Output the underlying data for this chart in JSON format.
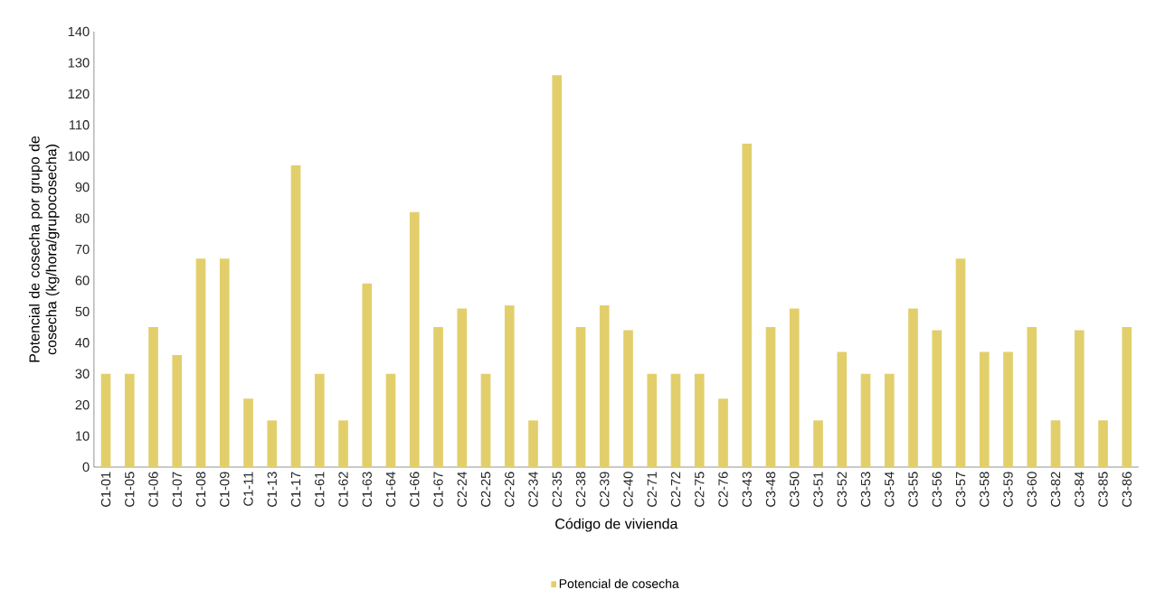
{
  "chart_data": {
    "type": "bar",
    "xlabel": "Código de vivienda",
    "ylabel": "Potencial de cosecha por grupo de cosecha (kg/hora/grupocosecha)",
    "categories": [
      "C1-01",
      "C1-05",
      "C1-06",
      "C1-07",
      "C1-08",
      "C1-09",
      "C1-11",
      "C1-13",
      "C1-17",
      "C1-61",
      "C1-62",
      "C1-63",
      "C1-64",
      "C1-66",
      "C1-67",
      "C2-24",
      "C2-25",
      "C2-26",
      "C2-34",
      "C2-35",
      "C2-38",
      "C2-39",
      "C2-40",
      "C2-71",
      "C2-72",
      "C2-75",
      "C2-76",
      "C3-43",
      "C3-48",
      "C3-50",
      "C3-51",
      "C3-52",
      "C3-53",
      "C3-54",
      "C3-55",
      "C3-56",
      "C3-57",
      "C3-58",
      "C3-59",
      "C3-60",
      "C3-82",
      "C3-84",
      "C3-85",
      "C3-86"
    ],
    "series": [
      {
        "name": "Potencial de cosecha",
        "color": "#e2cf6b",
        "values": [
          30,
          30,
          45,
          36,
          67,
          67,
          22,
          15,
          97,
          30,
          15,
          59,
          30,
          82,
          45,
          51,
          30,
          52,
          15,
          126,
          45,
          52,
          44,
          30,
          30,
          30,
          22,
          104,
          45,
          51,
          15,
          37,
          30,
          30,
          51,
          44,
          67,
          37,
          37,
          45,
          15,
          44,
          15,
          45
        ]
      }
    ],
    "ylim": [
      0,
      140
    ],
    "yticks": [
      0,
      10,
      20,
      30,
      40,
      50,
      60,
      70,
      80,
      90,
      100,
      110,
      120,
      130,
      140
    ],
    "grid": false,
    "legend": "bottom"
  }
}
